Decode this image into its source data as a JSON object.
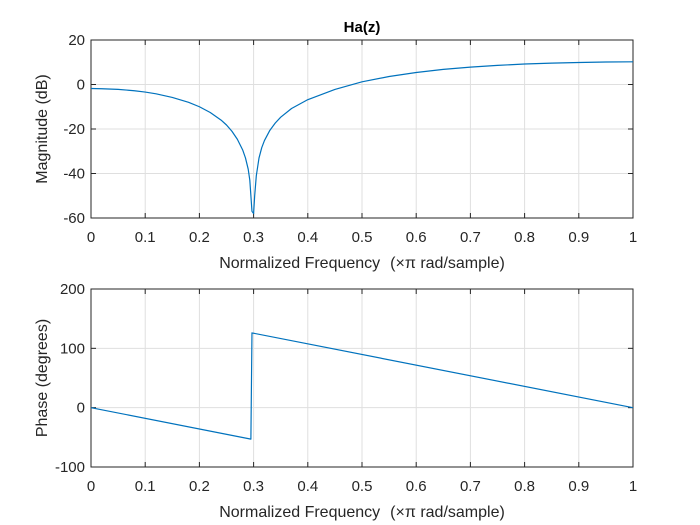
{
  "figure": {
    "title": "Ha(z)"
  },
  "chart_data": [
    {
      "type": "line",
      "title": "Ha(z)",
      "xlabel_main": "Normalized Frequency",
      "xlabel_unit": "(×π rad/sample)",
      "ylabel": "Magnitude (dB)",
      "xlim": [
        0,
        1
      ],
      "ylim": [
        -60,
        20
      ],
      "xticks": [
        "0",
        "0.1",
        "0.2",
        "0.3",
        "0.4",
        "0.5",
        "0.6",
        "0.7",
        "0.8",
        "0.9",
        "1"
      ],
      "yticks": [
        "-60",
        "-40",
        "-20",
        "0",
        "20"
      ],
      "grid": true,
      "color": "#0072bd",
      "series": [
        {
          "x": [
            0,
            0.02,
            0.05,
            0.08,
            0.1,
            0.12,
            0.15,
            0.18,
            0.2,
            0.22,
            0.24,
            0.25,
            0.26,
            0.27,
            0.28,
            0.285,
            0.29,
            0.293,
            0.295,
            0.297,
            0.3,
            0.302,
            0.305,
            0.31,
            0.315,
            0.32,
            0.33,
            0.34,
            0.35,
            0.37,
            0.4,
            0.45,
            0.5,
            0.55,
            0.6,
            0.65,
            0.7,
            0.75,
            0.8,
            0.85,
            0.9,
            0.95,
            1.0
          ],
          "y": [
            -1.8,
            -1.9,
            -2.2,
            -2.8,
            -3.4,
            -4.2,
            -5.8,
            -8.0,
            -10.0,
            -12.6,
            -16.0,
            -18.2,
            -21.0,
            -24.6,
            -29.5,
            -33.0,
            -38.0,
            -43.0,
            -50.0,
            -57.0,
            -58.0,
            -50.0,
            -41.0,
            -33.0,
            -28.4,
            -25.2,
            -20.6,
            -17.3,
            -14.7,
            -10.8,
            -6.8,
            -2.2,
            1.2,
            3.6,
            5.4,
            6.8,
            7.8,
            8.6,
            9.2,
            9.6,
            9.9,
            10.1,
            10.2
          ]
        }
      ]
    },
    {
      "type": "line",
      "xlabel_main": "Normalized Frequency",
      "xlabel_unit": "(×π rad/sample)",
      "ylabel": "Phase (degrees)",
      "xlim": [
        0,
        1
      ],
      "ylim": [
        -100,
        200
      ],
      "xticks": [
        "0",
        "0.1",
        "0.2",
        "0.3",
        "0.4",
        "0.5",
        "0.6",
        "0.7",
        "0.8",
        "0.9",
        "1"
      ],
      "yticks": [
        "-100",
        "0",
        "100",
        "200"
      ],
      "grid": true,
      "color": "#0072bd",
      "series": [
        {
          "x": [
            0,
            0.295,
            0.297,
            1.0
          ],
          "y": [
            0,
            -53,
            126,
            0
          ]
        }
      ]
    }
  ]
}
